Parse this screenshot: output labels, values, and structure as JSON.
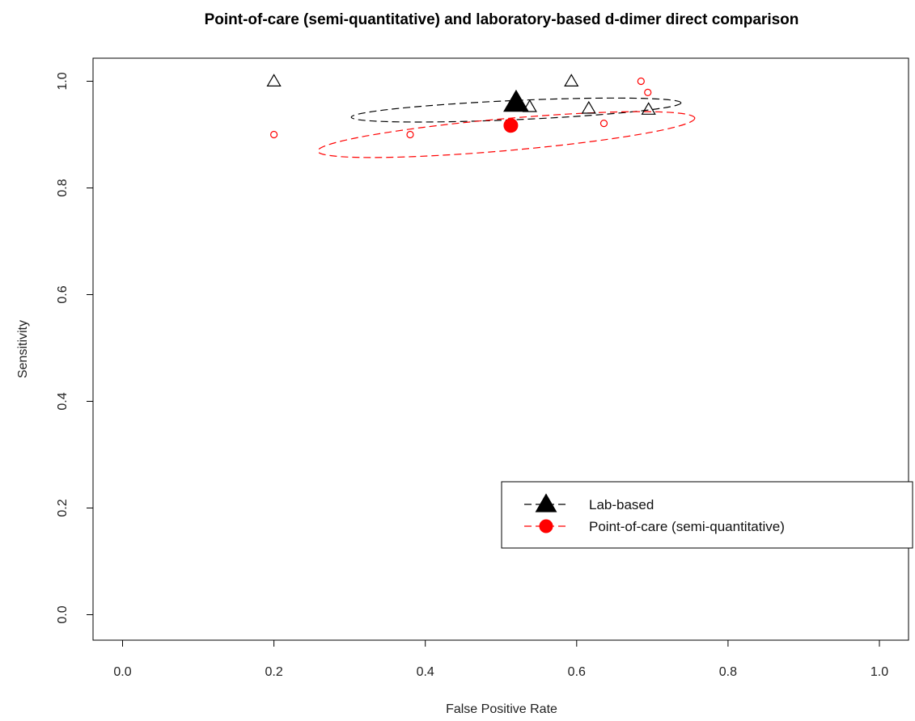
{
  "chart_data": {
    "type": "scatter",
    "title": "Point-of-care (semi-quantitative) and laboratory-based d-dimer direct comparison",
    "xlabel": "False Positive Rate",
    "ylabel": "Sensitivity",
    "xlim": [
      -0.1,
      1.05
    ],
    "ylim": [
      -0.05,
      1.05
    ],
    "x_ticks": [
      "0.0",
      "0.2",
      "0.4",
      "0.6",
      "0.8",
      "1.0"
    ],
    "y_ticks": [
      "0.0",
      "0.2",
      "0.4",
      "0.6",
      "0.8",
      "1.0"
    ],
    "grid": false,
    "legend_position": "bottom-right",
    "series": [
      {
        "name": "Lab-based",
        "color": "#000000",
        "marker": "triangle",
        "studies": [
          {
            "x": 0.2,
            "y": 1.0
          },
          {
            "x": 0.593,
            "y": 1.0
          },
          {
            "x": 0.538,
            "y": 0.952
          },
          {
            "x": 0.616,
            "y": 0.949
          },
          {
            "x": 0.695,
            "y": 0.947
          }
        ],
        "summary": {
          "x": 0.52,
          "y": 0.96
        },
        "confidence_region": {
          "cx": 0.52,
          "cy": 0.946,
          "rx": 0.218,
          "ry": 0.018,
          "angle_deg": -2.5
        }
      },
      {
        "name": "Point-of-care (semi-quantitative)",
        "color": "#ff0000",
        "marker": "circle",
        "studies": [
          {
            "x": 0.2,
            "y": 0.9
          },
          {
            "x": 0.38,
            "y": 0.9
          },
          {
            "x": 0.636,
            "y": 0.921
          },
          {
            "x": 0.685,
            "y": 1.0
          },
          {
            "x": 0.694,
            "y": 0.979
          }
        ],
        "summary": {
          "x": 0.513,
          "y": 0.917
        },
        "confidence_region": {
          "cx": 0.507,
          "cy": 0.9,
          "rx": 0.25,
          "ry": 0.03,
          "angle_deg": -5
        }
      }
    ]
  }
}
